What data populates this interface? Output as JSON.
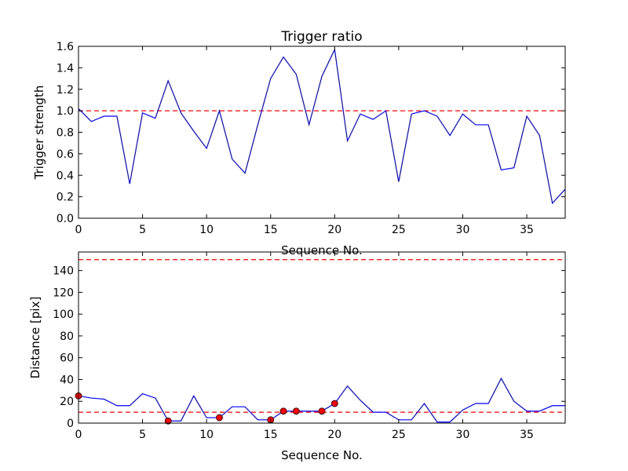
{
  "colors": {
    "series": "#0000ff",
    "reference": "#ff0000",
    "marker": "#ff0000"
  },
  "chart_data": [
    {
      "type": "line",
      "title": "Trigger ratio",
      "xlabel": "Sequence No.",
      "ylabel": "Trigger strength",
      "xlim": [
        0,
        38
      ],
      "ylim": [
        0,
        1.6
      ],
      "xticks": [
        0,
        5,
        10,
        15,
        20,
        25,
        30,
        35
      ],
      "xtick_labels": [
        "0",
        "5",
        "10",
        "15",
        "20",
        "25",
        "30",
        "35"
      ],
      "yticks": [
        0,
        0.2,
        0.4,
        0.6,
        0.8,
        1.0,
        1.2,
        1.4,
        1.6
      ],
      "ytick_labels": [
        "0.0",
        "0.2",
        "0.4",
        "0.6",
        "0.8",
        "1.0",
        "1.2",
        "1.4",
        "1.6"
      ],
      "reference_lines": [
        1.0
      ],
      "series": [
        {
          "name": "Trigger strength",
          "x": [
            0,
            1,
            2,
            3,
            4,
            5,
            6,
            7,
            8,
            9,
            10,
            11,
            12,
            13,
            14,
            15,
            16,
            17,
            18,
            19,
            20,
            21,
            22,
            23,
            24,
            25,
            26,
            27,
            28,
            29,
            30,
            31,
            32,
            33,
            34,
            35,
            36,
            37,
            38
          ],
          "values": [
            1.02,
            0.9,
            0.95,
            0.95,
            0.32,
            0.98,
            0.93,
            1.28,
            0.98,
            0.81,
            0.65,
            1.0,
            0.55,
            0.42,
            0.87,
            1.3,
            1.5,
            1.34,
            0.87,
            1.32,
            1.57,
            0.72,
            0.97,
            0.92,
            1.0,
            0.34,
            0.97,
            1.0,
            0.95,
            0.77,
            0.97,
            0.87,
            0.87,
            0.45,
            0.47,
            0.95,
            0.77,
            0.14,
            0.27
          ]
        }
      ]
    },
    {
      "type": "line",
      "title": "",
      "xlabel": "Sequence No.",
      "ylabel": "Distance [pix]",
      "xlim": [
        0,
        38
      ],
      "ylim": [
        0,
        157
      ],
      "xticks": [
        0,
        5,
        10,
        15,
        20,
        25,
        30,
        35
      ],
      "xtick_labels": [
        "0",
        "5",
        "10",
        "15",
        "20",
        "25",
        "30",
        "35"
      ],
      "yticks": [
        0,
        20,
        40,
        60,
        80,
        100,
        120,
        140
      ],
      "ytick_labels": [
        "0",
        "20",
        "40",
        "60",
        "80",
        "100",
        "120",
        "140"
      ],
      "reference_lines": [
        10,
        150
      ],
      "series": [
        {
          "name": "Distance",
          "x": [
            0,
            1,
            2,
            3,
            4,
            5,
            6,
            7,
            8,
            9,
            10,
            11,
            12,
            13,
            14,
            15,
            16,
            17,
            18,
            19,
            20,
            21,
            22,
            23,
            24,
            25,
            26,
            27,
            28,
            29,
            30,
            31,
            32,
            33,
            34,
            35,
            36,
            37,
            38
          ],
          "values": [
            25,
            23,
            22,
            16,
            16,
            27,
            23,
            2,
            2,
            25,
            5,
            5,
            15,
            15,
            3,
            3,
            11,
            11,
            11,
            11,
            18,
            34,
            21,
            10,
            10,
            3,
            3,
            18,
            1,
            1,
            12,
            18,
            18,
            41,
            20,
            11,
            11,
            16,
            16
          ]
        }
      ],
      "highlighted_points": {
        "x": [
          0,
          7,
          11,
          15,
          16,
          17,
          19,
          20
        ],
        "values": [
          25,
          2,
          5,
          3,
          11,
          11,
          11,
          18
        ]
      }
    }
  ]
}
